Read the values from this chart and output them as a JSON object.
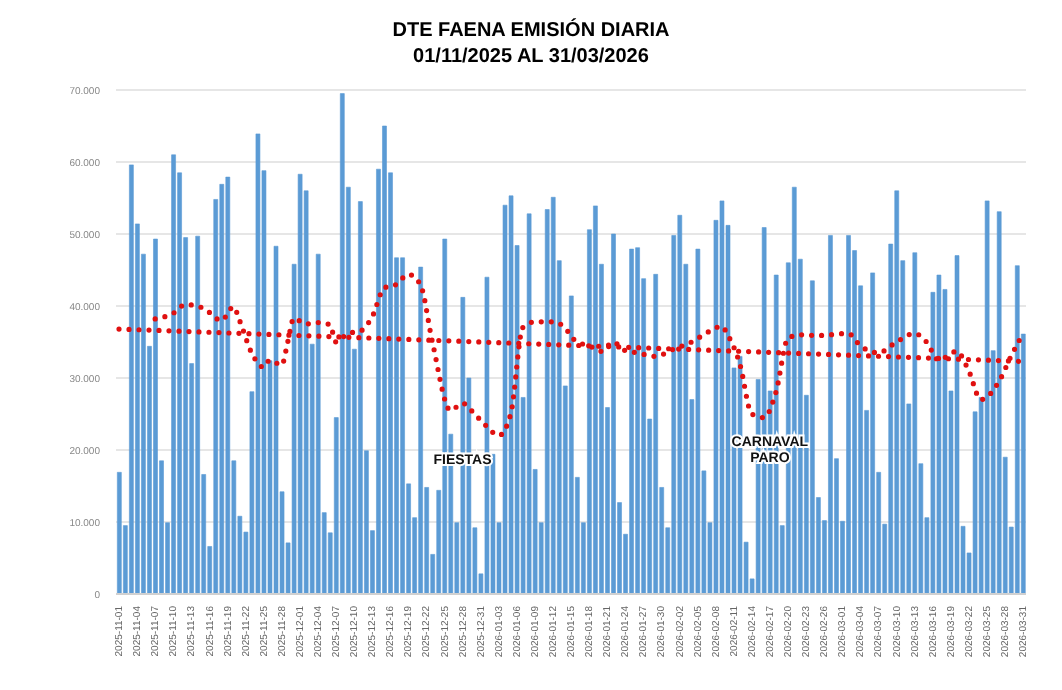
{
  "chart_data": {
    "type": "bar",
    "title": "DTE FAENA EMISIÓN DIARIA",
    "subtitle": "01/11/2025 AL 31/03/2026",
    "categories": [
      "2025-11-01",
      null,
      null,
      "2025-11-04",
      null,
      null,
      "2025-11-07",
      null,
      null,
      "2025-11-10",
      null,
      null,
      "2025-11-13",
      null,
      null,
      "2025-11-16",
      null,
      null,
      "2025-11-19",
      null,
      null,
      "2025-11-22",
      null,
      null,
      "2025-11-25",
      null,
      null,
      "2025-11-28",
      null,
      null,
      "2025-12-01",
      null,
      null,
      "2025-12-04",
      null,
      null,
      "2025-12-07",
      null,
      null,
      "2025-12-10",
      null,
      null,
      "2025-12-13",
      null,
      null,
      "2025-12-16",
      null,
      null,
      "2025-12-19",
      null,
      null,
      "2025-12-22",
      null,
      null,
      "2025-12-25",
      null,
      null,
      "2025-12-28",
      null,
      null,
      "2025-12-31",
      null,
      null,
      "2026-01-03",
      null,
      null,
      "2026-01-06",
      null,
      null,
      "2026-01-09",
      null,
      null,
      "2026-01-12",
      null,
      null,
      "2026-01-15",
      null,
      null,
      "2026-01-18",
      null,
      null,
      "2026-01-21",
      null,
      null,
      "2026-01-24",
      null,
      null,
      "2026-01-27",
      null,
      null,
      "2026-01-30",
      null,
      null,
      "2026-02-02",
      null,
      null,
      "2026-02-05",
      null,
      null,
      "2026-02-08",
      null,
      null,
      "2026-02-11",
      null,
      null,
      "2026-02-14",
      null,
      null,
      "2026-02-17",
      null,
      null,
      "2026-02-20",
      null,
      null,
      "2026-02-23",
      null,
      null,
      "2026-02-26",
      null,
      null,
      "2026-03-01",
      null,
      null,
      "2026-03-04",
      null,
      null,
      "2026-03-07",
      null,
      null,
      "2026-03-10",
      null,
      null,
      "2026-03-13",
      null,
      null,
      "2026-03-16",
      null,
      null,
      "2026-03-19",
      null,
      null,
      "2026-03-22",
      null,
      null,
      "2026-03-25",
      null,
      null,
      "2026-03-28",
      null,
      null,
      "2026-03-31"
    ],
    "series": [
      {
        "color": "#5b9bd5",
        "values": [
          16900,
          9500,
          59600,
          51400,
          47200,
          34400,
          49300,
          18500,
          9900,
          61000,
          58500,
          49500,
          32000,
          49700,
          16600,
          6600,
          54800,
          56900,
          57900,
          18500,
          10800,
          8600,
          28100,
          63900,
          58800,
          32400,
          48300,
          14200,
          7100,
          45800,
          58300,
          56000,
          34700,
          47200,
          11300,
          8500,
          24500,
          69500,
          56500,
          34000,
          54500,
          19900,
          8800,
          59000,
          65000,
          58500,
          46700,
          46700,
          15300,
          10600,
          45400,
          14800,
          5500,
          14400,
          49300,
          22200,
          9900,
          41200,
          30000,
          9200,
          2800,
          44000,
          19400,
          9900,
          54000,
          55300,
          48400,
          27300,
          52800,
          17300,
          9900,
          53400,
          55100,
          46300,
          28900,
          41400,
          16200,
          9900,
          50600,
          53900,
          45800,
          25900,
          50000,
          12700,
          8300,
          47900,
          48100,
          43800,
          24300,
          44400,
          14800,
          9200,
          49800,
          52600,
          45800,
          27000,
          47900,
          17100,
          9900,
          51900,
          54600,
          51200,
          31400,
          33000,
          7200,
          2100,
          29800,
          50900,
          28200,
          44300,
          9500,
          46000,
          56500,
          46500,
          27600,
          43500,
          13400,
          10200,
          49800,
          18800,
          10100,
          49800,
          47700,
          42800,
          25500,
          44600,
          16900,
          9700,
          48600,
          56000,
          46300,
          26400,
          47400,
          18100,
          10600,
          41900,
          44300,
          42300,
          28200,
          47000,
          9400,
          5700,
          25300,
          27300,
          54600,
          33800,
          53100,
          19000,
          9300,
          45600,
          36100
        ]
      },
      {
        "type": "line",
        "color": "#e01010",
        "line_style": "dotted",
        "values": [
          null,
          null,
          null,
          null,
          null,
          null,
          38200,
          null,
          null,
          39000,
          null,
          40200,
          null,
          null,
          39700,
          null,
          null,
          38000,
          null,
          39900,
          38000,
          null,
          33500,
          null,
          31500,
          32500,
          null,
          31800,
          35000,
          38300,
          null,
          37500,
          null,
          37700,
          null,
          37400,
          35000,
          null,
          36200,
          null,
          36500,
          null,
          38500,
          null,
          42500,
          null,
          43000,
          null,
          44400,
          null,
          43000,
          null,
          35000,
          null,
          null,
          25500,
          null,
          26500,
          null,
          25000,
          null,
          23300,
          null,
          22000,
          null,
          25000,
          null,
          37000,
          null,
          37800,
          null,
          null,
          37800,
          null,
          37000,
          35800,
          35000,
          null,
          34500,
          null,
          33700,
          null,
          35000,
          null,
          33800,
          null,
          33500,
          null,
          null,
          33000,
          null,
          null,
          34000,
          null,
          null,
          35000,
          null,
          null,
          36500,
          null,
          37200,
          36000,
          null,
          32000,
          null,
          25000,
          null,
          24500,
          null,
          28000,
          null,
          35500,
          null,
          36000,
          null,
          null,
          35900,
          null,
          36000,
          null,
          null,
          36200,
          null,
          34500,
          null,
          null,
          33500,
          null,
          null,
          35000,
          null,
          null,
          36200,
          null,
          35000,
          null,
          32500,
          null,
          null,
          33700,
          null,
          31000,
          null,
          27000,
          null,
          null,
          29500,
          null,
          33000,
          null,
          36200
        ]
      },
      {
        "type": "line",
        "color": "#e01010",
        "line_style": "dotted",
        "values": [
          36800,
          null,
          null,
          null,
          null,
          null,
          null,
          null,
          null,
          null,
          null,
          null,
          null,
          null,
          null,
          null,
          null,
          null,
          null,
          null,
          null,
          null,
          null,
          null,
          null,
          null,
          null,
          null,
          null,
          null,
          null,
          null,
          null,
          null,
          null,
          null,
          null,
          null,
          null,
          null,
          null,
          null,
          null,
          null,
          null,
          null,
          null,
          null,
          null,
          null,
          null,
          null,
          null,
          null,
          null,
          null,
          null,
          null,
          null,
          null,
          null,
          null,
          null,
          null,
          null,
          null,
          null,
          null,
          null,
          null,
          null,
          null,
          null,
          null,
          null,
          null,
          null,
          null,
          null,
          null,
          null,
          null,
          null,
          null,
          null,
          null,
          null,
          null,
          null,
          null,
          null,
          null,
          null,
          null,
          null,
          null,
          null,
          null,
          null,
          null,
          null,
          null,
          null,
          null,
          null,
          null,
          null,
          null,
          null,
          null,
          null,
          null,
          null,
          null,
          null,
          null,
          null,
          null,
          null,
          null,
          null,
          null,
          null,
          null,
          null,
          null,
          null,
          null,
          null,
          null,
          null,
          null,
          null,
          null,
          null,
          null,
          null,
          null,
          null,
          null,
          null,
          null,
          null,
          null,
          null,
          null,
          null,
          null,
          null,
          null,
          32300
        ]
      }
    ],
    "ylim": [
      0,
      70000
    ],
    "yticks": [
      0,
      {
        "value": 10000,
        "label": "10.000"
      },
      {
        "value": 20000,
        "label": "20.000"
      },
      {
        "value": 30000,
        "label": "30.000"
      },
      {
        "value": 40000,
        "label": "40.000"
      },
      {
        "value": 50000,
        "label": "50.000"
      },
      {
        "value": 60000,
        "label": "60.000"
      },
      {
        "value": 70000,
        "label": "70.000"
      }
    ],
    "grid": "y",
    "legend": false,
    "annotations": [
      {
        "text": "FIESTAS",
        "x": "2025-12-28",
        "y": 18000
      },
      {
        "text": "CARNAVAL PARO",
        "x": "2026-02-17",
        "y": 20500
      }
    ]
  }
}
